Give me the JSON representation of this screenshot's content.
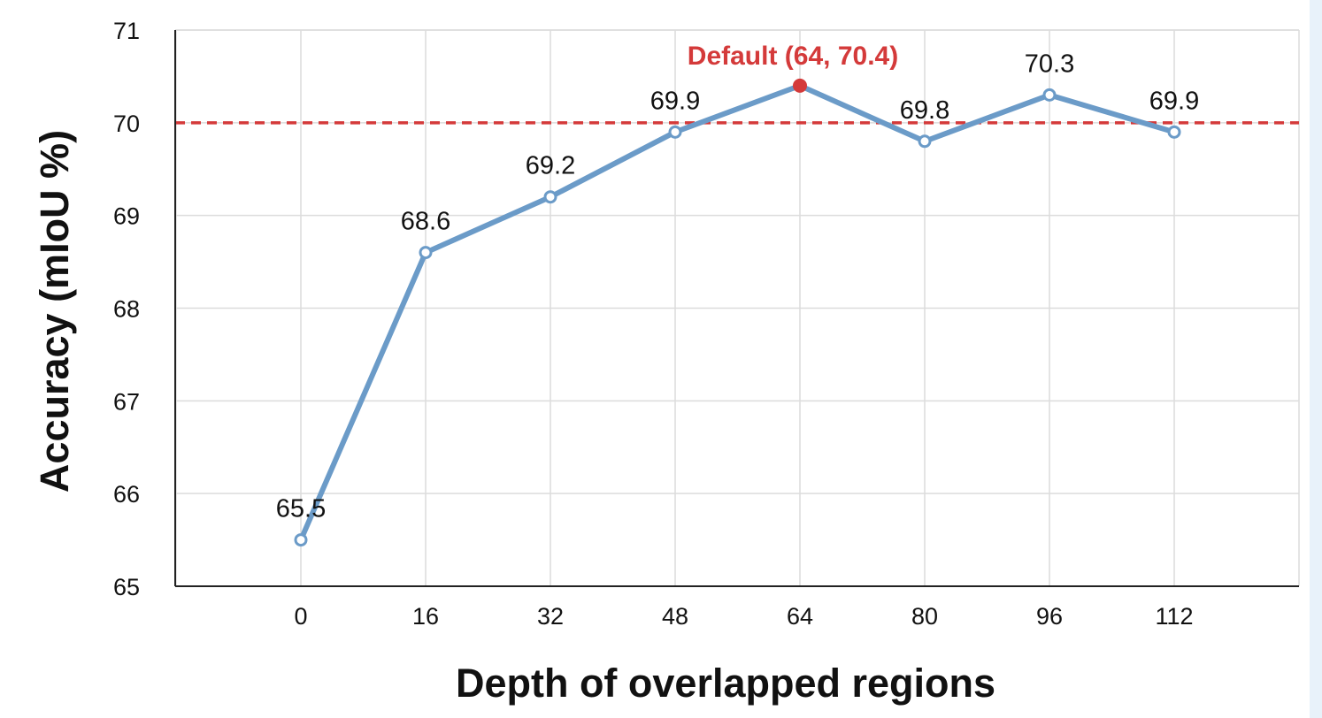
{
  "chart_data": {
    "type": "line",
    "title": "",
    "xlabel": "Depth of overlapped regions",
    "ylabel": "Accuracy (mIoU %)",
    "x": [
      0,
      16,
      32,
      48,
      64,
      80,
      96,
      112
    ],
    "x_tick_labels": [
      "0",
      "16",
      "32",
      "48",
      "64",
      "80",
      "96",
      "112"
    ],
    "y_ticks": [
      65,
      66,
      67,
      68,
      69,
      70,
      71
    ],
    "y_tick_labels": [
      "65",
      "66",
      "67",
      "68",
      "69",
      "70",
      "71"
    ],
    "ylim": [
      65,
      71
    ],
    "grid": true,
    "series": [
      {
        "values": [
          65.5,
          68.6,
          69.2,
          69.9,
          70.4,
          69.8,
          70.3,
          69.9
        ],
        "labels": [
          "65.5",
          "68.6",
          "69.2",
          "69.9",
          "70.4",
          "69.8",
          "70.3",
          "69.9"
        ],
        "color": "#6b9bc8"
      }
    ],
    "reference_line": {
      "y": 70,
      "color": "#d43a3a",
      "style": "dashed"
    },
    "highlight": {
      "x": 64,
      "y": 70.4,
      "label": "Default (64, 70.4)",
      "color": "#d43a3a"
    }
  }
}
